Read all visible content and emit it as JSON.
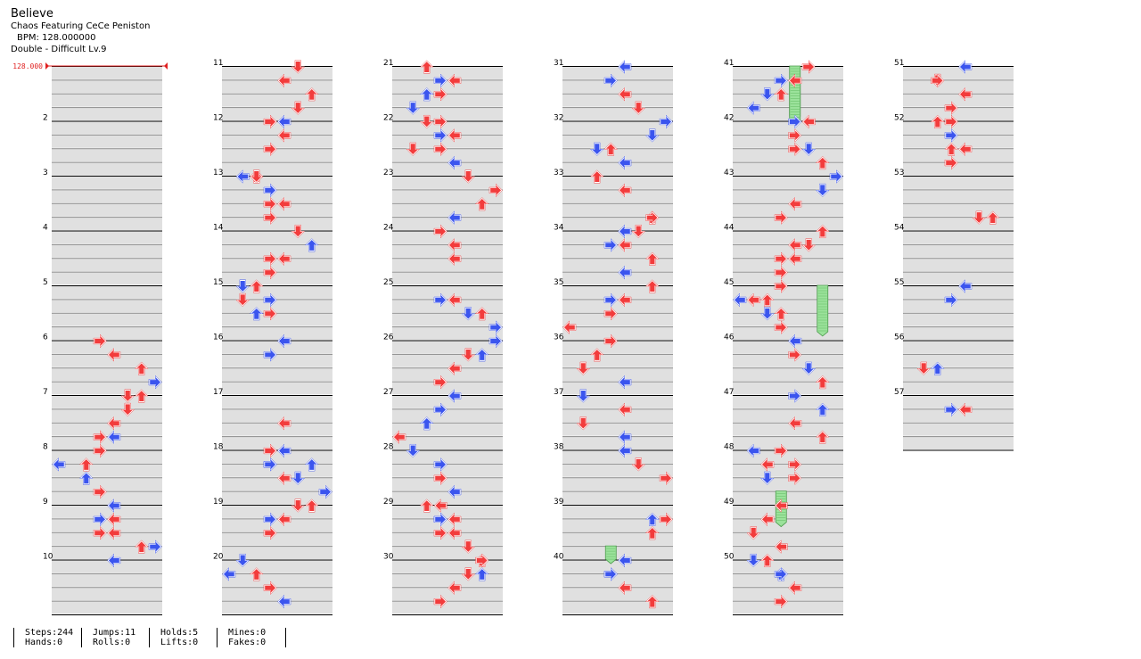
{
  "song": {
    "title": "Believe",
    "artist": "Chaos Featuring CeCe Peniston",
    "bpm_text": "BPM: 128.000000",
    "chart_text": "Double - Difficult  Lv.9",
    "bpm_marker": "128.000"
  },
  "colors": {
    "red_arrow": "#f23c3c",
    "blue_arrow": "#3b55ee",
    "hold": "#9be29b",
    "bpm_marker": "#e02020"
  },
  "panels": [
    "L",
    "D",
    "U",
    "R",
    "L",
    "D",
    "U",
    "R"
  ],
  "icon_names": {
    "L": "left-arrow-icon",
    "D": "down-arrow-icon",
    "U": "up-arrow-icon",
    "R": "right-arrow-icon",
    "hold": "hold-bar"
  },
  "measure_numbers": [
    "2",
    "3",
    "4",
    "5",
    "6",
    "7",
    "8",
    "9",
    "10",
    "11",
    "12",
    "13",
    "14",
    "15",
    "16",
    "17",
    "18",
    "19",
    "20",
    "21",
    "22",
    "23",
    "24",
    "25",
    "26",
    "27",
    "28",
    "29",
    "30",
    "31",
    "32",
    "33",
    "34",
    "35",
    "36",
    "37",
    "38",
    "39",
    "40",
    "41",
    "42",
    "43",
    "44",
    "45",
    "46",
    "47",
    "48",
    "49",
    "50",
    "51",
    "52",
    "53",
    "54",
    "55",
    "56",
    "57"
  ],
  "total_measures": 57,
  "measures_per_column": 10,
  "notes": [
    [
      6,
      0,
      3,
      "R"
    ],
    [
      6,
      1,
      4,
      "L"
    ],
    [
      6,
      2,
      6,
      "U"
    ],
    [
      6,
      3,
      7,
      "R"
    ],
    [
      7,
      0,
      5,
      "D"
    ],
    [
      7,
      0,
      6,
      "U"
    ],
    [
      7,
      1,
      5,
      "D"
    ],
    [
      7,
      2,
      4,
      "L"
    ],
    [
      7,
      3,
      3,
      "R"
    ],
    [
      7,
      3,
      4,
      "L"
    ],
    [
      8,
      0,
      3,
      "R"
    ],
    [
      8,
      1,
      2,
      "U"
    ],
    [
      8,
      1,
      0,
      "L"
    ],
    [
      8,
      2,
      2,
      "U"
    ],
    [
      8,
      3,
      3,
      "R"
    ],
    [
      9,
      0,
      4,
      "L"
    ],
    [
      9,
      1,
      3,
      "R"
    ],
    [
      9,
      1,
      4,
      "L"
    ],
    [
      9,
      2,
      3,
      "R"
    ],
    [
      9,
      2,
      4,
      "L"
    ],
    [
      9,
      3,
      6,
      "U"
    ],
    [
      9,
      3,
      7,
      "R"
    ],
    [
      10,
      0,
      4,
      "L"
    ],
    [
      11,
      0,
      5,
      "D"
    ],
    [
      11,
      1,
      4,
      "L"
    ],
    [
      11,
      2,
      6,
      "U"
    ],
    [
      11,
      3,
      5,
      "D"
    ],
    [
      12,
      0,
      3,
      "R"
    ],
    [
      12,
      0,
      4,
      "L"
    ],
    [
      12,
      1,
      4,
      "L"
    ],
    [
      12,
      2,
      3,
      "R"
    ],
    [
      13,
      0,
      1,
      "L"
    ],
    [
      13,
      0,
      2,
      "U"
    ],
    [
      13,
      0,
      2,
      "D"
    ],
    [
      13,
      1,
      3,
      "R"
    ],
    [
      13,
      2,
      3,
      "R"
    ],
    [
      13,
      2,
      4,
      "L"
    ],
    [
      13,
      3,
      3,
      "R"
    ],
    [
      14,
      0,
      5,
      "D"
    ],
    [
      14,
      1,
      6,
      "U"
    ],
    [
      14,
      2,
      3,
      "R"
    ],
    [
      14,
      2,
      4,
      "L"
    ],
    [
      14,
      3,
      3,
      "R"
    ],
    [
      15,
      0,
      1,
      "D"
    ],
    [
      15,
      0,
      2,
      "U"
    ],
    [
      15,
      1,
      3,
      "R"
    ],
    [
      15,
      1,
      1,
      "D"
    ],
    [
      15,
      2,
      2,
      "U"
    ],
    [
      15,
      2,
      3,
      "R"
    ],
    [
      16,
      0,
      4,
      "L"
    ],
    [
      16,
      1,
      3,
      "R"
    ],
    [
      17,
      2,
      4,
      "L"
    ],
    [
      18,
      0,
      3,
      "R"
    ],
    [
      18,
      0,
      4,
      "L"
    ],
    [
      18,
      1,
      3,
      "R"
    ],
    [
      18,
      1,
      3,
      "R"
    ],
    [
      18,
      1,
      6,
      "U"
    ],
    [
      18,
      2,
      4,
      "L"
    ],
    [
      18,
      2,
      5,
      "D"
    ],
    [
      18,
      3,
      7,
      "R"
    ],
    [
      19,
      0,
      5,
      "D"
    ],
    [
      19,
      0,
      6,
      "U"
    ],
    [
      19,
      1,
      4,
      "L"
    ],
    [
      19,
      1,
      3,
      "R"
    ],
    [
      19,
      2,
      3,
      "R"
    ],
    [
      20,
      0,
      1,
      "D"
    ],
    [
      20,
      1,
      0,
      "L"
    ],
    [
      20,
      1,
      2,
      "U"
    ],
    [
      20,
      2,
      3,
      "R"
    ],
    [
      20,
      3,
      4,
      "L"
    ],
    [
      21,
      0,
      2,
      "U"
    ],
    [
      21,
      1,
      3,
      "R"
    ],
    [
      21,
      1,
      4,
      "L"
    ],
    [
      21,
      2,
      2,
      "U"
    ],
    [
      21,
      2,
      3,
      "R"
    ],
    [
      21,
      3,
      1,
      "D"
    ],
    [
      22,
      0,
      2,
      "D"
    ],
    [
      22,
      0,
      3,
      "R"
    ],
    [
      22,
      1,
      3,
      "R"
    ],
    [
      22,
      1,
      4,
      "L"
    ],
    [
      22,
      2,
      1,
      "D"
    ],
    [
      22,
      2,
      3,
      "R"
    ],
    [
      22,
      3,
      4,
      "L"
    ],
    [
      23,
      0,
      5,
      "D"
    ],
    [
      23,
      1,
      7,
      "R"
    ],
    [
      23,
      2,
      6,
      "U"
    ],
    [
      23,
      3,
      4,
      "L"
    ],
    [
      24,
      0,
      3,
      "R"
    ],
    [
      24,
      1,
      4,
      "L"
    ],
    [
      24,
      2,
      4,
      "L"
    ],
    [
      25,
      1,
      3,
      "R"
    ],
    [
      25,
      1,
      4,
      "L"
    ],
    [
      25,
      2,
      5,
      "D"
    ],
    [
      25,
      2,
      6,
      "U"
    ],
    [
      25,
      3,
      7,
      "R"
    ],
    [
      26,
      0,
      7,
      "R"
    ],
    [
      26,
      1,
      6,
      "U"
    ],
    [
      26,
      1,
      5,
      "D"
    ],
    [
      26,
      2,
      4,
      "L"
    ],
    [
      26,
      3,
      3,
      "R"
    ],
    [
      27,
      0,
      4,
      "L"
    ],
    [
      27,
      1,
      3,
      "R"
    ],
    [
      27,
      2,
      2,
      "U"
    ],
    [
      27,
      3,
      0,
      "L"
    ],
    [
      28,
      0,
      1,
      "D"
    ],
    [
      28,
      1,
      3,
      "R"
    ],
    [
      28,
      2,
      3,
      "R"
    ],
    [
      28,
      3,
      4,
      "L"
    ],
    [
      29,
      0,
      2,
      "U"
    ],
    [
      29,
      0,
      3,
      "L"
    ],
    [
      29,
      1,
      3,
      "R"
    ],
    [
      29,
      1,
      3,
      "R"
    ],
    [
      29,
      1,
      4,
      "L"
    ],
    [
      29,
      2,
      3,
      "R"
    ],
    [
      29,
      2,
      4,
      "L"
    ],
    [
      29,
      3,
      5,
      "D"
    ],
    [
      30,
      0,
      6,
      "U"
    ],
    [
      30,
      0,
      6,
      "R"
    ],
    [
      30,
      1,
      5,
      "D"
    ],
    [
      30,
      1,
      6,
      "U"
    ],
    [
      30,
      2,
      4,
      "L"
    ],
    [
      30,
      3,
      3,
      "R"
    ],
    [
      31,
      0,
      4,
      "L"
    ],
    [
      31,
      1,
      3,
      "R"
    ],
    [
      31,
      2,
      4,
      "L"
    ],
    [
      31,
      3,
      5,
      "D"
    ],
    [
      32,
      0,
      7,
      "R"
    ],
    [
      32,
      1,
      6,
      "D"
    ],
    [
      32,
      2,
      2,
      "D"
    ],
    [
      32,
      2,
      3,
      "U"
    ],
    [
      32,
      3,
      4,
      "L"
    ],
    [
      33,
      0,
      2,
      "U"
    ],
    [
      33,
      1,
      4,
      "L"
    ],
    [
      33,
      3,
      6,
      "U"
    ],
    [
      33,
      3,
      6,
      "R"
    ],
    [
      34,
      0,
      4,
      "L"
    ],
    [
      34,
      0,
      5,
      "D"
    ],
    [
      34,
      1,
      3,
      "R"
    ],
    [
      34,
      1,
      4,
      "L"
    ],
    [
      34,
      2,
      6,
      "U"
    ],
    [
      34,
      3,
      4,
      "L"
    ],
    [
      35,
      0,
      6,
      "U"
    ],
    [
      35,
      1,
      3,
      "R"
    ],
    [
      35,
      1,
      4,
      "L"
    ],
    [
      35,
      2,
      3,
      "R"
    ],
    [
      35,
      3,
      0,
      "L"
    ],
    [
      36,
      0,
      3,
      "R"
    ],
    [
      36,
      1,
      2,
      "U"
    ],
    [
      36,
      2,
      1,
      "D"
    ],
    [
      36,
      3,
      4,
      "L"
    ],
    [
      37,
      0,
      1,
      "D"
    ],
    [
      37,
      1,
      4,
      "L"
    ],
    [
      37,
      2,
      1,
      "D"
    ],
    [
      37,
      3,
      4,
      "L"
    ],
    [
      38,
      0,
      4,
      "L"
    ],
    [
      38,
      1,
      5,
      "D"
    ],
    [
      38,
      2,
      7,
      "R"
    ],
    [
      39,
      1,
      6,
      "U"
    ],
    [
      39,
      1,
      7,
      "R"
    ],
    [
      39,
      2,
      6,
      "U"
    ],
    [
      40,
      0,
      4,
      "L"
    ],
    [
      40,
      1,
      3,
      "R"
    ],
    [
      40,
      1,
      3,
      "R"
    ],
    [
      40,
      2,
      4,
      "L"
    ],
    [
      40,
      3,
      6,
      "U"
    ],
    [
      41,
      0,
      5,
      "R"
    ],
    [
      41,
      1,
      3,
      "R"
    ],
    [
      41,
      1,
      4,
      "L"
    ],
    [
      41,
      2,
      2,
      "D"
    ],
    [
      41,
      2,
      3,
      "U"
    ],
    [
      41,
      3,
      1,
      "L"
    ],
    [
      42,
      0,
      5,
      "L"
    ],
    [
      42,
      0,
      4,
      "R"
    ],
    [
      42,
      1,
      4,
      "R"
    ],
    [
      42,
      2,
      4,
      "R"
    ],
    [
      42,
      2,
      5,
      "D"
    ],
    [
      42,
      3,
      6,
      "U"
    ],
    [
      43,
      0,
      7,
      "R"
    ],
    [
      43,
      1,
      6,
      "D"
    ],
    [
      43,
      2,
      4,
      "L"
    ],
    [
      43,
      3,
      3,
      "R"
    ],
    [
      44,
      0,
      6,
      "U"
    ],
    [
      44,
      1,
      5,
      "D"
    ],
    [
      44,
      1,
      4,
      "L"
    ],
    [
      44,
      2,
      4,
      "L"
    ],
    [
      44,
      2,
      3,
      "R"
    ],
    [
      44,
      3,
      3,
      "R"
    ],
    [
      45,
      0,
      3,
      "R"
    ],
    [
      45,
      1,
      2,
      "U"
    ],
    [
      45,
      1,
      1,
      "L"
    ],
    [
      45,
      1,
      0,
      "L"
    ],
    [
      45,
      2,
      2,
      "D"
    ],
    [
      45,
      2,
      3,
      "U"
    ],
    [
      45,
      3,
      3,
      "R"
    ],
    [
      46,
      0,
      4,
      "L"
    ],
    [
      46,
      1,
      4,
      "R"
    ],
    [
      46,
      2,
      5,
      "D"
    ],
    [
      46,
      3,
      6,
      "U"
    ],
    [
      47,
      0,
      4,
      "R"
    ],
    [
      47,
      1,
      6,
      "U"
    ],
    [
      47,
      2,
      4,
      "L"
    ],
    [
      47,
      3,
      6,
      "U"
    ],
    [
      48,
      0,
      1,
      "L"
    ],
    [
      48,
      0,
      3,
      "R"
    ],
    [
      48,
      1,
      2,
      "L"
    ],
    [
      48,
      1,
      4,
      "R"
    ],
    [
      48,
      2,
      4,
      "R"
    ],
    [
      48,
      2,
      2,
      "D"
    ],
    [
      49,
      0,
      3,
      "L"
    ],
    [
      49,
      1,
      2,
      "L"
    ],
    [
      49,
      2,
      1,
      "D"
    ],
    [
      49,
      3,
      3,
      "L"
    ],
    [
      50,
      0,
      1,
      "D"
    ],
    [
      50,
      0,
      2,
      "U"
    ],
    [
      50,
      1,
      3,
      "U"
    ],
    [
      50,
      1,
      3,
      "R"
    ],
    [
      50,
      2,
      4,
      "L"
    ],
    [
      50,
      3,
      3,
      "R"
    ],
    [
      51,
      0,
      4,
      "L"
    ],
    [
      51,
      1,
      2,
      "D"
    ],
    [
      51,
      1,
      2,
      "R"
    ],
    [
      51,
      2,
      4,
      "L"
    ],
    [
      51,
      3,
      3,
      "R"
    ],
    [
      52,
      0,
      2,
      "U"
    ],
    [
      52,
      0,
      3,
      "R"
    ],
    [
      52,
      1,
      3,
      "R"
    ],
    [
      52,
      2,
      3,
      "U"
    ],
    [
      52,
      2,
      4,
      "L"
    ],
    [
      52,
      3,
      3,
      "R"
    ],
    [
      53,
      3,
      5,
      "D"
    ],
    [
      53,
      3,
      6,
      "U"
    ],
    [
      55,
      0,
      4,
      "L"
    ],
    [
      55,
      1,
      3,
      "R"
    ],
    [
      56,
      2,
      1,
      "D"
    ],
    [
      56,
      2,
      2,
      "U"
    ],
    [
      57,
      1,
      3,
      "R"
    ],
    [
      57,
      1,
      4,
      "L"
    ]
  ],
  "holds": [
    [
      41,
      0,
      4,
      4
    ],
    [
      41,
      1,
      4,
      3.3
    ],
    [
      45,
      0,
      6,
      3.7
    ],
    [
      48,
      3,
      3,
      2.6
    ],
    [
      39,
      3,
      3,
      1.3
    ]
  ],
  "stats": [
    [
      "Steps:244",
      "Hands:0"
    ],
    [
      "Jumps:11",
      "Rolls:0"
    ],
    [
      "Holds:5",
      "Lifts:0"
    ],
    [
      "Mines:0",
      "Fakes:0"
    ]
  ]
}
